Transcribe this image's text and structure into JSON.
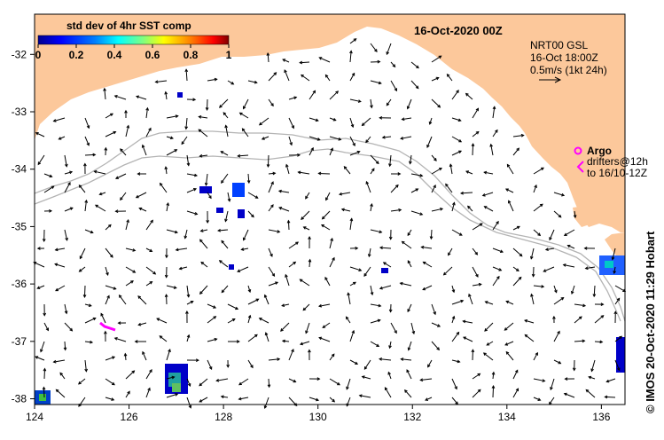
{
  "map": {
    "date_title": "16-Oct-2020 00Z",
    "colorbar": {
      "title": "std dev of 4hr SST comp",
      "ticks": [
        "0",
        "0.2",
        "0.4",
        "0.6",
        "0.8",
        "1"
      ],
      "colors": [
        "#00008f",
        "#0000ff",
        "#0080ff",
        "#00ffff",
        "#80ff80",
        "#ffff00",
        "#ff8000",
        "#ff0000",
        "#800000"
      ]
    },
    "current_info": {
      "line1": "NRT00 GSL",
      "line2": "16-Oct 18:00Z",
      "line3": "0.5m/s (1kt 24h)"
    },
    "argo": {
      "label": "Argo",
      "drifters_line1": "drifters@12h",
      "drifters_line2": "to 16/10-12Z",
      "color": "#ff00ff"
    },
    "credit": "© IMOS 20-Oct-2020 11:29 Hobart",
    "x_ticks": [
      "124",
      "126",
      "128",
      "130",
      "132",
      "134",
      "136"
    ],
    "y_ticks": [
      "-32",
      "-33",
      "-34",
      "-35",
      "-36",
      "-37",
      "-38"
    ],
    "colors": {
      "land": "#fcc89b",
      "ocean": "#ffffff",
      "isobath": "#b4b4b4",
      "arrow": "#000000"
    }
  }
}
